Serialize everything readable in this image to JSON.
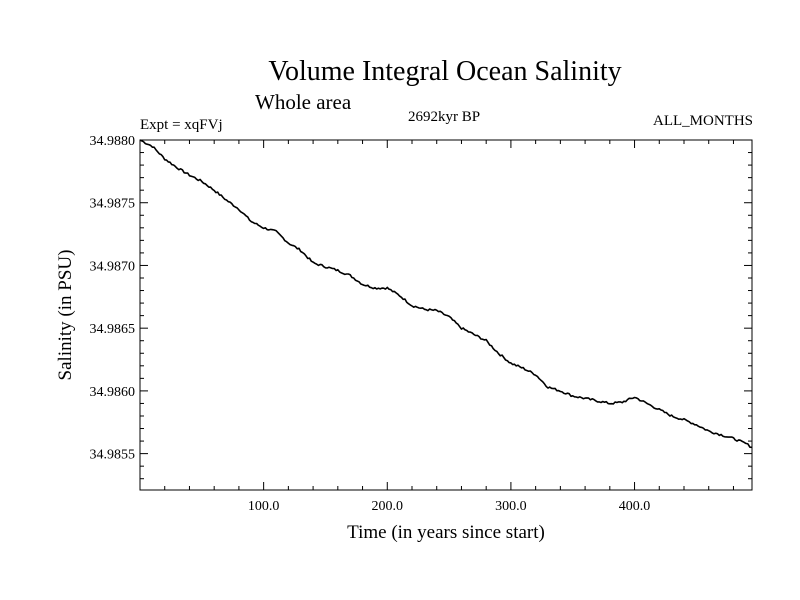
{
  "chart_data": {
    "type": "line",
    "title": "Volume Integral Ocean Salinity",
    "subtitle": "Whole area",
    "annotations": {
      "left": "Expt = xqFVj",
      "center": "2692kyr BP",
      "right": "ALL_MONTHS"
    },
    "xlabel": "Time (in years since start)",
    "ylabel": "Salinity (in PSU)",
    "xlim": [
      0,
      495
    ],
    "ylim": [
      34.98521,
      34.988
    ],
    "x_ticks": [
      100,
      200,
      300,
      400
    ],
    "x_tick_labels": [
      "100.0",
      "200.0",
      "300.0",
      "400.0"
    ],
    "y_ticks": [
      34.9855,
      34.986,
      34.9865,
      34.987,
      34.9875,
      34.988
    ],
    "y_tick_labels": [
      "34.9855",
      "34.9860",
      "34.9865",
      "34.9870",
      "34.9875",
      "34.9880"
    ],
    "grid": false,
    "series": [
      {
        "name": "salinity",
        "x": [
          0,
          10,
          20,
          30,
          40,
          50,
          60,
          70,
          80,
          90,
          100,
          110,
          120,
          130,
          140,
          150,
          160,
          170,
          180,
          190,
          200,
          210,
          220,
          230,
          240,
          250,
          260,
          270,
          280,
          290,
          300,
          310,
          320,
          330,
          340,
          350,
          360,
          370,
          380,
          390,
          400,
          410,
          420,
          430,
          440,
          450,
          460,
          470,
          480,
          490,
          495
        ],
        "y": [
          34.988,
          34.98795,
          34.98785,
          34.98778,
          34.98772,
          34.98767,
          34.9876,
          34.98752,
          34.98745,
          34.98735,
          34.9873,
          34.98727,
          34.98718,
          34.98712,
          34.98702,
          34.98699,
          34.98696,
          34.98692,
          34.98685,
          34.98682,
          34.98682,
          34.98676,
          34.98668,
          34.98665,
          34.98664,
          34.98659,
          34.9865,
          34.98645,
          34.9864,
          34.9863,
          34.98622,
          34.98618,
          34.98613,
          34.98603,
          34.986,
          34.98596,
          34.98594,
          34.98592,
          34.9859,
          34.98591,
          34.98595,
          34.9859,
          34.98585,
          34.9858,
          34.98577,
          34.98573,
          34.98568,
          34.98565,
          34.98562,
          34.98558,
          34.98555
        ]
      }
    ]
  }
}
